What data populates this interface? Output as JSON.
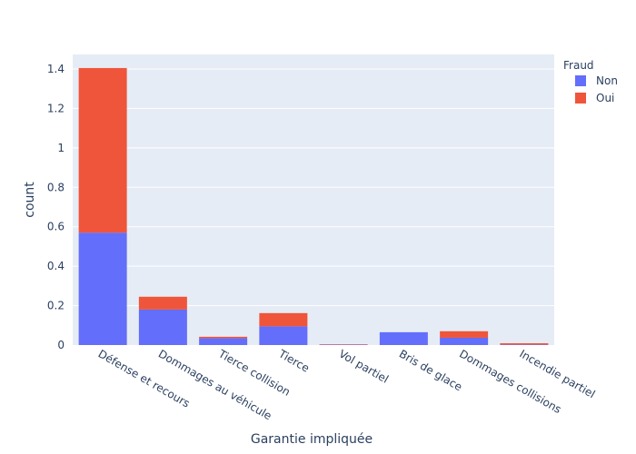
{
  "chart_data": {
    "type": "bar",
    "barmode": "stack",
    "title": "",
    "xlabel": "Garantie impliquée",
    "ylabel": "count",
    "categories": [
      "Défense et recours",
      "Dommages au véhicule",
      "Tierce collision",
      "Tierce",
      "Vol partiel",
      "Bris de glace",
      "Dommages collisions",
      "Incendie partiel"
    ],
    "series": [
      {
        "name": "Non",
        "color": "#636efa",
        "values": [
          0.57,
          0.18,
          0.035,
          0.095,
          0.002,
          0.065,
          0.037,
          0.002
        ]
      },
      {
        "name": "Oui",
        "color": "#ef553b",
        "values": [
          0.835,
          0.065,
          0.007,
          0.067,
          0.002,
          0.0,
          0.033,
          0.007
        ]
      }
    ],
    "ylim": [
      0,
      1.4737
    ],
    "yticks": [
      0,
      0.2,
      0.4,
      0.6,
      0.8,
      1,
      1.2,
      1.4
    ],
    "ytick_labels": [
      "0",
      "0.2",
      "0.4",
      "0.6",
      "0.8",
      "1",
      "1.2",
      "1.4"
    ],
    "grid": true,
    "legend": {
      "title": "Fraud",
      "placement": "top-right"
    },
    "plot_bg": "#e5ecf6",
    "text_color": "#2a3f5f"
  }
}
